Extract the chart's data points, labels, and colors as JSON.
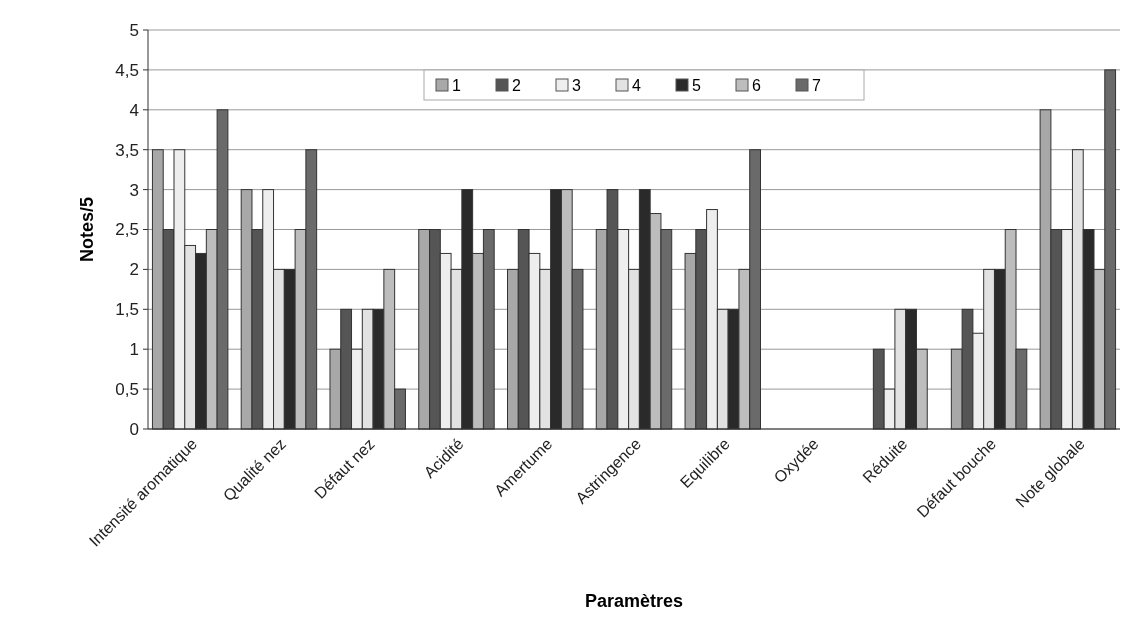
{
  "chart_data": {
    "type": "bar",
    "xlabel": "Paramètres",
    "ylabel": "Notes/5",
    "categories": [
      "Intensité aromatique",
      "Qualité nez",
      "Défaut nez",
      "Acidité",
      "Amertume",
      "Astringence",
      "Equilibre",
      "Oxydée",
      "Réduite",
      "Défaut bouche",
      "Note globale"
    ],
    "series": [
      {
        "name": "1",
        "color": "#a8a8a8",
        "values": [
          3.5,
          3,
          1,
          2.5,
          2,
          2.5,
          2.2,
          0,
          0,
          1,
          4
        ]
      },
      {
        "name": "2",
        "color": "#555555",
        "values": [
          2.5,
          2.5,
          1.5,
          2.5,
          2.5,
          3,
          2.5,
          0,
          1,
          1.5,
          2.5
        ]
      },
      {
        "name": "3",
        "color": "#eeeeee",
        "values": [
          3.5,
          3,
          1,
          2.2,
          2.2,
          2.5,
          2.75,
          0,
          0.5,
          1.2,
          2.5
        ]
      },
      {
        "name": "4",
        "color": "#e2e2e2",
        "values": [
          2.3,
          2,
          1.5,
          2,
          2,
          2,
          1.5,
          0,
          1.5,
          2,
          3.5
        ]
      },
      {
        "name": "5",
        "color": "#2a2a2a",
        "values": [
          2.2,
          2,
          1.5,
          3,
          3,
          3,
          1.5,
          0,
          1.5,
          2,
          2.5
        ]
      },
      {
        "name": "6",
        "color": "#bdbdbd",
        "values": [
          2.5,
          2.5,
          2,
          2.2,
          3,
          2.7,
          2,
          0,
          1,
          2.5,
          2
        ]
      },
      {
        "name": "7",
        "color": "#6a6a6a",
        "values": [
          4,
          3.5,
          0.5,
          2.5,
          2,
          2.5,
          3.5,
          0,
          0,
          1,
          4.5
        ]
      }
    ],
    "ylim": [
      0,
      5
    ],
    "yticks": [
      0,
      {
        "value": 0.5,
        "label": "0,5"
      },
      1,
      {
        "value": 1.5,
        "label": "1,5"
      },
      2,
      {
        "value": 2.5,
        "label": "2,5"
      },
      3,
      {
        "value": 3.5,
        "label": "3,5"
      },
      4,
      {
        "value": 4.5,
        "label": "4,5"
      },
      5
    ],
    "grid": "y",
    "legend": "top"
  }
}
